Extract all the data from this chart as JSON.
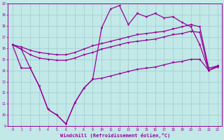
{
  "xlabel": "Windchill (Refroidissement éolien,°C)",
  "background_color": "#c2e8e8",
  "grid_color": "#a0cccc",
  "line_color": "#990099",
  "x": [
    0,
    1,
    2,
    3,
    4,
    5,
    6,
    7,
    8,
    9,
    10,
    11,
    12,
    13,
    14,
    15,
    16,
    17,
    18,
    19,
    20,
    21,
    22,
    23
  ],
  "series_zigzag": [
    16.3,
    15.9,
    14.2,
    12.6,
    10.5,
    10.0,
    9.2,
    11.1,
    12.4,
    13.2,
    17.8,
    19.5,
    19.8,
    18.1,
    19.1,
    18.8,
    19.1,
    18.7,
    18.8,
    18.3,
    17.9,
    16.3,
    14.0,
    14.4
  ],
  "series_upper": [
    16.3,
    16.1,
    15.8,
    15.6,
    15.5,
    15.4,
    15.4,
    15.6,
    15.9,
    16.2,
    16.4,
    16.6,
    16.8,
    17.0,
    17.2,
    17.3,
    17.4,
    17.5,
    17.7,
    17.9,
    18.1,
    17.9,
    14.2,
    14.4
  ],
  "series_mid": [
    16.3,
    15.9,
    15.4,
    15.1,
    15.0,
    14.9,
    14.9,
    15.1,
    15.4,
    15.6,
    15.9,
    16.1,
    16.3,
    16.5,
    16.6,
    16.7,
    16.8,
    17.0,
    17.2,
    17.3,
    17.5,
    17.4,
    14.0,
    14.3
  ],
  "series_lower": [
    16.3,
    14.2,
    14.2,
    12.6,
    10.5,
    10.0,
    9.2,
    11.1,
    12.4,
    13.2,
    13.3,
    13.5,
    13.7,
    13.9,
    14.1,
    14.2,
    14.3,
    14.5,
    14.7,
    14.8,
    15.0,
    15.0,
    14.0,
    14.4
  ],
  "ylim_min": 9,
  "ylim_max": 20,
  "xlim_min": -0.5,
  "xlim_max": 23.5
}
